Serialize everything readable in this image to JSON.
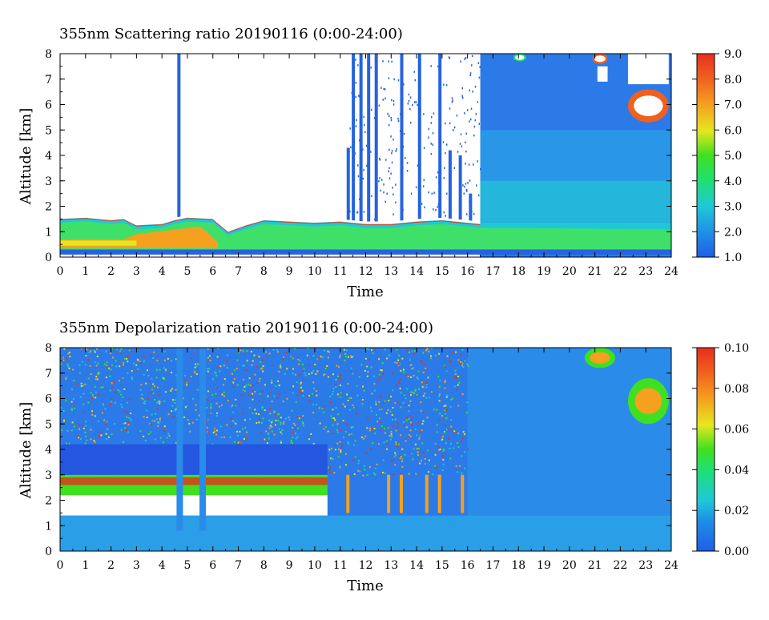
{
  "chart_data": [
    {
      "type": "heatmap",
      "title": "355nm Scattering ratio  20190116 (0:00-24:00)",
      "xlabel": "Time",
      "ylabel": "Altitude [km]",
      "xlim": [
        0,
        24
      ],
      "ylim": [
        0,
        8
      ],
      "x_ticks": [
        "0",
        "1",
        "2",
        "3",
        "4",
        "5",
        "6",
        "7",
        "8",
        "9",
        "10",
        "11",
        "12",
        "13",
        "14",
        "15",
        "16",
        "17",
        "18",
        "19",
        "20",
        "21",
        "22",
        "23",
        "24"
      ],
      "y_ticks": [
        "0",
        "1",
        "2",
        "3",
        "4",
        "5",
        "6",
        "7",
        "8"
      ],
      "colorbar": {
        "range": [
          1.0,
          9.0
        ],
        "ticks": [
          "1.0",
          "2.0",
          "3.0",
          "4.0",
          "5.0",
          "6.0",
          "7.0",
          "8.0",
          "9.0"
        ]
      },
      "features": {
        "surface_layer": {
          "alt_km": [
            0.2,
            1.4
          ],
          "value": 5.5
        },
        "low_layer_top_km": [
          [
            0,
            1.55
          ],
          [
            1,
            1.6
          ],
          [
            2,
            1.5
          ],
          [
            2.5,
            1.55
          ],
          [
            3,
            1.3
          ],
          [
            4,
            1.35
          ],
          [
            4.5,
            1.5
          ],
          [
            5,
            1.6
          ],
          [
            6,
            1.55
          ],
          [
            6.6,
            1.05
          ],
          [
            7.3,
            1.3
          ],
          [
            8,
            1.5
          ],
          [
            9,
            1.45
          ],
          [
            10,
            1.4
          ],
          [
            11,
            1.45
          ],
          [
            12,
            1.35
          ],
          [
            13,
            1.35
          ],
          [
            14,
            1.45
          ],
          [
            15,
            1.5
          ],
          [
            16,
            1.4
          ],
          [
            16.5,
            1.35
          ]
        ],
        "spikes": [
          {
            "t": 4.65,
            "top_km": 8.0
          },
          {
            "t": 11.3,
            "top_km": 4.3
          },
          {
            "t": 11.5,
            "top_km": 8.0
          },
          {
            "t": 11.8,
            "top_km": 8.0
          },
          {
            "t": 12.1,
            "top_km": 8.0
          },
          {
            "t": 12.4,
            "top_km": 8.0
          },
          {
            "t": 13.4,
            "top_km": 8.0
          },
          {
            "t": 14.1,
            "top_km": 8.0
          },
          {
            "t": 14.9,
            "top_km": 8.0
          },
          {
            "t": 15.3,
            "top_km": 4.2
          },
          {
            "t": 15.7,
            "top_km": 4.0
          },
          {
            "t": 16.1,
            "top_km": 2.5
          }
        ],
        "continuous_from_hour": 16.5,
        "clouds": [
          {
            "t": [
              22.3,
              23.9
            ],
            "alt_km": [
              5.3,
              6.6
            ],
            "value": 8.0
          },
          {
            "t": [
              20.9,
              21.5
            ],
            "alt_km": [
              7.6,
              8.0
            ],
            "value": 7.0
          },
          {
            "t": [
              17.8,
              18.3
            ],
            "alt_km": [
              7.7,
              8.0
            ],
            "value": 4.0
          }
        ]
      }
    },
    {
      "type": "heatmap",
      "title": "355nm Depolarization ratio  20190116 (0:00-24:00)",
      "xlabel": "Time",
      "ylabel": "Altitude [km]",
      "xlim": [
        0,
        24
      ],
      "ylim": [
        0,
        8
      ],
      "x_ticks": [
        "0",
        "1",
        "2",
        "3",
        "4",
        "5",
        "6",
        "7",
        "8",
        "9",
        "10",
        "11",
        "12",
        "13",
        "14",
        "15",
        "16",
        "17",
        "18",
        "19",
        "20",
        "21",
        "22",
        "23",
        "24"
      ],
      "y_ticks": [
        "0",
        "1",
        "2",
        "3",
        "4",
        "5",
        "6",
        "7",
        "8"
      ],
      "colorbar": {
        "range": [
          0.0,
          0.1
        ],
        "ticks": [
          "0.00",
          "0.02",
          "0.04",
          "0.06",
          "0.08",
          "0.10"
        ]
      },
      "features": {
        "noisy_until_hour": 16.0,
        "high_depol_band_km": [
          2.2,
          3.0
        ],
        "white_band_km": [
          1.4,
          2.2
        ],
        "lower_layer_km": [
          0,
          1.4
        ],
        "clouds": [
          {
            "t": [
              22.3,
              23.9
            ],
            "alt_km": [
              5.0,
              6.8
            ],
            "value": 0.085
          },
          {
            "t": [
              20.6,
              21.8
            ],
            "alt_km": [
              7.2,
              8.0
            ],
            "value": 0.085
          }
        ]
      }
    }
  ]
}
